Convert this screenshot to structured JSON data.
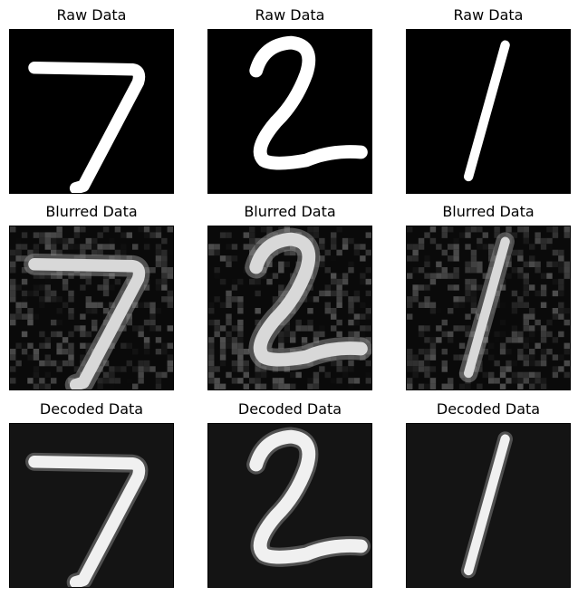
{
  "panels": [
    {
      "title": "Raw Data",
      "digit": "7",
      "style": "raw"
    },
    {
      "title": "Raw Data",
      "digit": "2",
      "style": "raw"
    },
    {
      "title": "Raw Data",
      "digit": "1",
      "style": "raw"
    },
    {
      "title": "Blurred Data",
      "digit": "7",
      "style": "blurred"
    },
    {
      "title": "Blurred Data",
      "digit": "2",
      "style": "blurred"
    },
    {
      "title": "Blurred Data",
      "digit": "1",
      "style": "blurred"
    },
    {
      "title": "Decoded Data",
      "digit": "7",
      "style": "decoded"
    },
    {
      "title": "Decoded Data",
      "digit": "2",
      "style": "decoded"
    },
    {
      "title": "Decoded Data",
      "digit": "1",
      "style": "decoded"
    }
  ],
  "colors": {
    "raw_background": "#000000",
    "blurred_background": "#0a0a0a",
    "decoded_background": "#141414",
    "stroke_raw": "#ffffff",
    "stroke_blurred": "#d8d8d8",
    "stroke_decoded": "#f0f0f0"
  }
}
